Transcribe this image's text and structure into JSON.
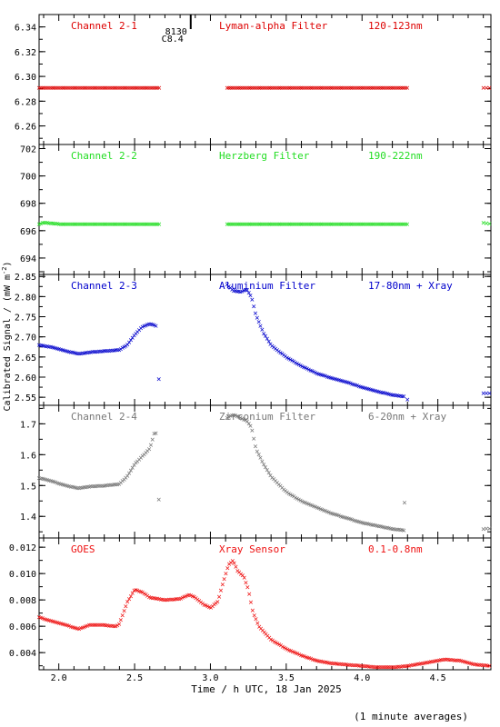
{
  "figure": {
    "xlabel": "Time / h UTC, 18 Jan 2025",
    "ylabel": "Calibrated Signal / (mW m",
    "ylabel_sup": "-2",
    "ylabel_close": ")",
    "footnote": "(1 minute averages)",
    "event_marker": {
      "time": 2.87,
      "label_lines": [
        "8130",
        "C8.4"
      ]
    },
    "x_axis": {
      "range": [
        1.87,
        4.85
      ],
      "ticks": [
        2.0,
        2.5,
        3.0,
        3.5,
        4.0,
        4.5
      ],
      "tick_labels": [
        "2.0",
        "2.5",
        "3.0",
        "3.5",
        "4.0",
        "4.5"
      ]
    }
  },
  "chart_data": [
    {
      "type": "scatter",
      "channel": "Channel 2-1",
      "filter": "Lyman-alpha Filter",
      "band": "120-123nm",
      "color": "#dd0000",
      "ylim": [
        6.245,
        6.35
      ],
      "yticks": [
        6.26,
        6.28,
        6.3,
        6.32,
        6.34
      ],
      "ytick_labels": [
        "6.26",
        "6.28",
        "6.30",
        "6.32",
        "6.34"
      ],
      "series": [
        {
          "x_start": 1.87,
          "x_end": 2.67,
          "y_points": [
            [
              1.87,
              6.291
            ],
            [
              2.67,
              6.291
            ]
          ]
        },
        {
          "x_start": 3.11,
          "x_end": 4.3,
          "y_points": [
            [
              3.11,
              6.291
            ],
            [
              4.3,
              6.291
            ]
          ]
        },
        {
          "x_start": 4.8,
          "x_end": 4.85,
          "y_points": [
            [
              4.8,
              6.291
            ],
            [
              4.85,
              6.291
            ]
          ]
        }
      ]
    },
    {
      "type": "scatter",
      "channel": "Channel 2-2",
      "filter": "Herzberg Filter",
      "band": "190-222nm",
      "color": "#22dd22",
      "ylim": [
        692.8,
        702.3
      ],
      "yticks": [
        694,
        696,
        698,
        700,
        702
      ],
      "ytick_labels": [
        "694",
        "696",
        "698",
        "700",
        "702"
      ],
      "series": [
        {
          "x_start": 1.87,
          "x_end": 2.67,
          "y_points": [
            [
              1.87,
              696.5
            ],
            [
              1.9,
              696.6
            ],
            [
              2.0,
              696.5
            ],
            [
              2.67,
              696.5
            ]
          ]
        },
        {
          "x_start": 3.11,
          "x_end": 4.3,
          "y_points": [
            [
              3.11,
              696.5
            ],
            [
              4.3,
              696.5
            ]
          ]
        },
        {
          "x_start": 4.8,
          "x_end": 4.85,
          "y_points": [
            [
              4.8,
              696.6
            ],
            [
              4.85,
              696.5
            ]
          ]
        }
      ]
    },
    {
      "type": "scatter",
      "channel": "Channel 2-3",
      "filter": "Aluminium Filter",
      "band": "17-80nm + Xray",
      "color": "#0000cc",
      "ylim": [
        2.53,
        2.855
      ],
      "yticks": [
        2.55,
        2.6,
        2.65,
        2.7,
        2.75,
        2.8,
        2.85
      ],
      "ytick_labels": [
        "2.55",
        "2.60",
        "2.65",
        "2.70",
        "2.75",
        "2.80",
        "2.85"
      ],
      "series": [
        {
          "x_start": 1.87,
          "x_end": 2.64,
          "y_points": [
            [
              1.87,
              2.68
            ],
            [
              1.95,
              2.675
            ],
            [
              2.05,
              2.665
            ],
            [
              2.13,
              2.658
            ],
            [
              2.2,
              2.662
            ],
            [
              2.3,
              2.665
            ],
            [
              2.4,
              2.668
            ],
            [
              2.45,
              2.68
            ],
            [
              2.5,
              2.705
            ],
            [
              2.55,
              2.725
            ],
            [
              2.6,
              2.733
            ],
            [
              2.64,
              2.728
            ]
          ]
        },
        {
          "x_start": 2.66,
          "x_end": 2.66,
          "y_points": [
            [
              2.66,
              2.595
            ]
          ]
        },
        {
          "x_start": 3.11,
          "x_end": 4.28,
          "y_points": [
            [
              3.11,
              2.83
            ],
            [
              3.15,
              2.815
            ],
            [
              3.2,
              2.812
            ],
            [
              3.24,
              2.818
            ],
            [
              3.27,
              2.8
            ],
            [
              3.3,
              2.755
            ],
            [
              3.35,
              2.71
            ],
            [
              3.4,
              2.68
            ],
            [
              3.5,
              2.65
            ],
            [
              3.6,
              2.628
            ],
            [
              3.7,
              2.61
            ],
            [
              3.8,
              2.598
            ],
            [
              3.9,
              2.588
            ],
            [
              4.0,
              2.575
            ],
            [
              4.1,
              2.565
            ],
            [
              4.2,
              2.556
            ],
            [
              4.28,
              2.552
            ]
          ]
        },
        {
          "x_start": 4.3,
          "x_end": 4.3,
          "y_points": [
            [
              4.3,
              2.545
            ]
          ]
        },
        {
          "x_start": 4.8,
          "x_end": 4.85,
          "y_points": [
            [
              4.8,
              2.56
            ],
            [
              4.85,
              2.561
            ]
          ]
        }
      ]
    },
    {
      "type": "scatter",
      "channel": "Channel 2-4",
      "filter": "Zirconium Filter",
      "band": "6-20nm + Xray",
      "color": "#777777",
      "ylim": [
        1.33,
        1.76
      ],
      "yticks": [
        1.4,
        1.5,
        1.6,
        1.7
      ],
      "ytick_labels": [
        "1.4",
        "1.5",
        "1.6",
        "1.7"
      ],
      "series": [
        {
          "x_start": 1.87,
          "x_end": 2.64,
          "y_points": [
            [
              1.87,
              1.525
            ],
            [
              1.95,
              1.515
            ],
            [
              2.05,
              1.5
            ],
            [
              2.13,
              1.492
            ],
            [
              2.2,
              1.497
            ],
            [
              2.3,
              1.5
            ],
            [
              2.4,
              1.505
            ],
            [
              2.45,
              1.53
            ],
            [
              2.5,
              1.57
            ],
            [
              2.55,
              1.595
            ],
            [
              2.6,
              1.62
            ],
            [
              2.63,
              1.67
            ]
          ]
        },
        {
          "x_start": 2.66,
          "x_end": 2.66,
          "y_points": [
            [
              2.66,
              1.455
            ]
          ]
        },
        {
          "x_start": 3.11,
          "x_end": 4.28,
          "y_points": [
            [
              3.11,
              1.72
            ],
            [
              3.15,
              1.73
            ],
            [
              3.2,
              1.72
            ],
            [
              3.24,
              1.71
            ],
            [
              3.27,
              1.69
            ],
            [
              3.3,
              1.62
            ],
            [
              3.35,
              1.57
            ],
            [
              3.4,
              1.53
            ],
            [
              3.5,
              1.48
            ],
            [
              3.6,
              1.45
            ],
            [
              3.7,
              1.43
            ],
            [
              3.8,
              1.41
            ],
            [
              3.9,
              1.395
            ],
            [
              4.0,
              1.38
            ],
            [
              4.1,
              1.37
            ],
            [
              4.2,
              1.36
            ],
            [
              4.28,
              1.355
            ]
          ]
        },
        {
          "x_start": 4.28,
          "x_end": 4.28,
          "y_points": [
            [
              4.28,
              1.445
            ]
          ]
        },
        {
          "x_start": 4.8,
          "x_end": 4.85,
          "y_points": [
            [
              4.8,
              1.36
            ],
            [
              4.85,
              1.361
            ]
          ]
        }
      ]
    },
    {
      "type": "scatter",
      "channel": "GOES",
      "filter": "Xray Sensor",
      "band": "0.1-0.8nm",
      "color": "#ee1111",
      "ylim": [
        0.0027,
        0.0127
      ],
      "yticks": [
        0.004,
        0.006,
        0.008,
        0.01,
        0.012
      ],
      "ytick_labels": [
        "0.004",
        "0.006",
        "0.008",
        "0.010",
        "0.012"
      ],
      "series": [
        {
          "x_start": 1.87,
          "x_end": 4.85,
          "y_points": [
            [
              1.87,
              0.0067
            ],
            [
              1.95,
              0.0064
            ],
            [
              2.05,
              0.0061
            ],
            [
              2.13,
              0.0058
            ],
            [
              2.2,
              0.0061
            ],
            [
              2.3,
              0.0061
            ],
            [
              2.38,
              0.006
            ],
            [
              2.4,
              0.0062
            ],
            [
              2.45,
              0.0078
            ],
            [
              2.5,
              0.0088
            ],
            [
              2.55,
              0.0086
            ],
            [
              2.6,
              0.0082
            ],
            [
              2.7,
              0.008
            ],
            [
              2.8,
              0.0081
            ],
            [
              2.86,
              0.0084
            ],
            [
              2.9,
              0.0082
            ],
            [
              2.95,
              0.0077
            ],
            [
              3.0,
              0.0074
            ],
            [
              3.05,
              0.0079
            ],
            [
              3.08,
              0.0092
            ],
            [
              3.12,
              0.0107
            ],
            [
              3.15,
              0.011
            ],
            [
              3.18,
              0.0102
            ],
            [
              3.22,
              0.0098
            ],
            [
              3.25,
              0.0088
            ],
            [
              3.28,
              0.0071
            ],
            [
              3.32,
              0.006
            ],
            [
              3.4,
              0.005
            ],
            [
              3.5,
              0.0043
            ],
            [
              3.6,
              0.0038
            ],
            [
              3.7,
              0.0034
            ],
            [
              3.8,
              0.0032
            ],
            [
              3.9,
              0.0031
            ],
            [
              4.0,
              0.003
            ],
            [
              4.1,
              0.0029
            ],
            [
              4.2,
              0.0029
            ],
            [
              4.3,
              0.003
            ],
            [
              4.4,
              0.0032
            ],
            [
              4.5,
              0.0034
            ],
            [
              4.55,
              0.0035
            ],
            [
              4.65,
              0.0034
            ],
            [
              4.75,
              0.0031
            ],
            [
              4.85,
              0.003
            ]
          ]
        }
      ]
    }
  ]
}
